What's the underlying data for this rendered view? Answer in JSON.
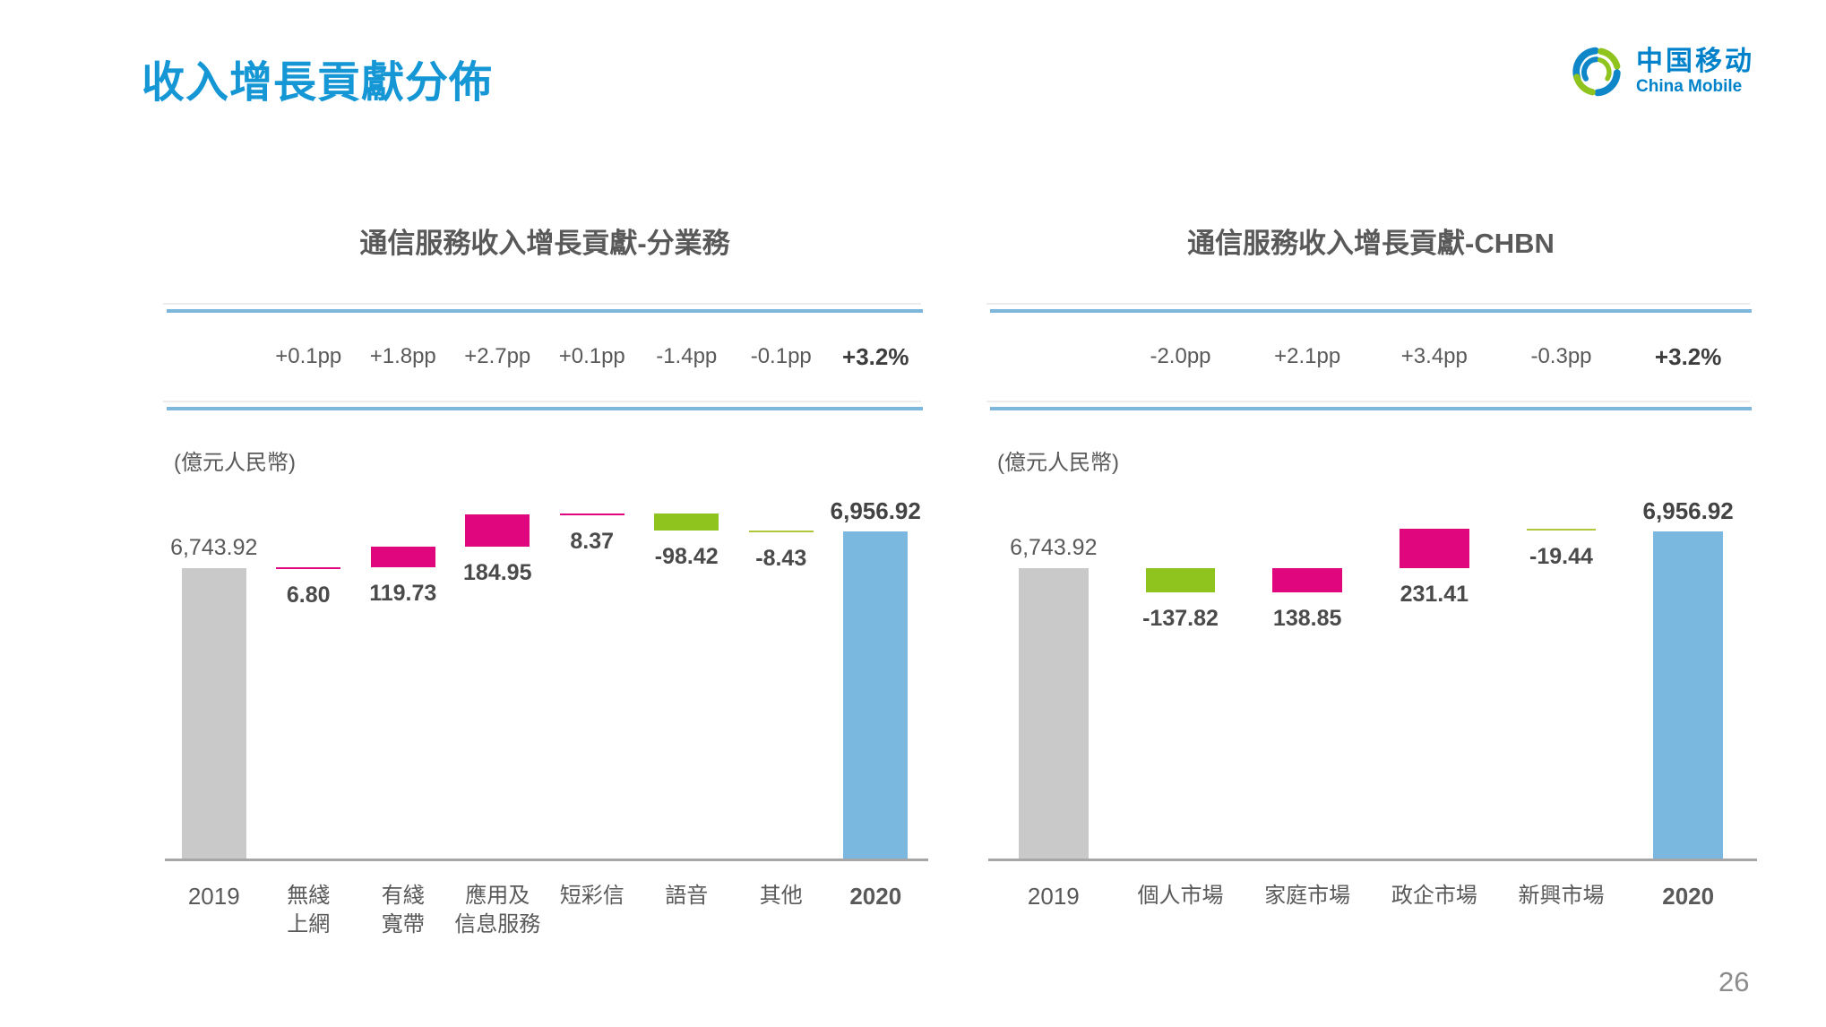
{
  "slide": {
    "title": "收入增長貢獻分佈",
    "page_number": "26"
  },
  "logo": {
    "name_zh": "中国移动",
    "name_en": "China Mobile"
  },
  "colors": {
    "title_blue": "#1697D5",
    "header_line_blue": "#7EB7DC",
    "bar_gray": "#C9C9C9",
    "bar_blue": "#7BB8E0",
    "bar_magenta": "#E0067E",
    "bar_green": "#8FC31D",
    "line_green_thin": "#AEC73B",
    "axis_gray": "#A6A6A6",
    "text_gray": "#595959"
  },
  "chart_data": [
    {
      "type": "bar",
      "subtype": "waterfall",
      "title": "通信服務收入增長貢獻-分業務",
      "unit_label": "(億元人民幣)",
      "categories": [
        "2019",
        "無綫\n上網",
        "有綫\n寬帶",
        "應用及\n信息服務",
        "短彩信",
        "語音",
        "其他",
        "2020"
      ],
      "roles": [
        "start",
        "delta",
        "delta",
        "delta",
        "delta",
        "delta",
        "delta",
        "end"
      ],
      "values": [
        6743.92,
        6.8,
        119.73,
        184.95,
        8.37,
        -98.42,
        -8.43,
        6956.92
      ],
      "value_labels": [
        "6,743.92",
        "6.80",
        "119.73",
        "184.95",
        "8.37",
        "-98.42",
        "-8.43",
        "6,956.92"
      ],
      "pp_labels": [
        "",
        "+0.1pp",
        "+1.8pp",
        "+2.7pp",
        "+0.1pp",
        "-1.4pp",
        "-0.1pp",
        "+3.2%"
      ],
      "ylim": [
        5050,
        7130
      ],
      "grid": false,
      "legend": "none",
      "bar_width_ratio": 0.68
    },
    {
      "type": "bar",
      "subtype": "waterfall",
      "title": "通信服務收入增長貢獻-CHBN",
      "unit_label": "(億元人民幣)",
      "categories": [
        "2019",
        "個人市場",
        "家庭市場",
        "政企市場",
        "新興市場",
        "2020"
      ],
      "roles": [
        "start",
        "delta",
        "delta",
        "delta",
        "delta",
        "end"
      ],
      "values": [
        6743.92,
        -137.82,
        138.85,
        231.41,
        -19.44,
        6956.92
      ],
      "value_labels": [
        "6,743.92",
        "-137.82",
        "138.85",
        "231.41",
        "-19.44",
        "6,956.92"
      ],
      "pp_labels": [
        "",
        "-2.0pp",
        "+2.1pp",
        "+3.4pp",
        "-0.3pp",
        "+3.2%"
      ],
      "ylim": [
        5050,
        7130
      ],
      "grid": false,
      "legend": "none",
      "bar_width_ratio": 0.55
    }
  ]
}
